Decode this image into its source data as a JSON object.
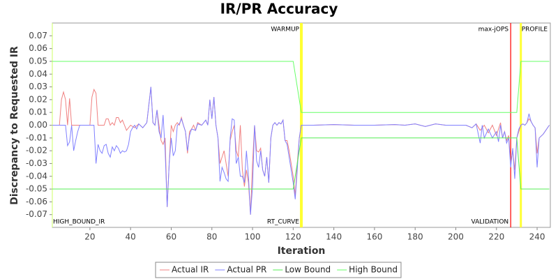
{
  "chart_data": {
    "type": "line",
    "title": "IR/PR Accuracy",
    "x_label": "Iteration",
    "y_label": "Discrepancy to Requested IR",
    "xlim": [
      1.5,
      246.5
    ],
    "xticks": [
      20,
      40,
      60,
      80,
      100,
      120,
      140,
      160,
      180,
      200,
      220,
      240
    ],
    "ylim": [
      -0.08,
      0.08
    ],
    "yticks": [
      -0.07,
      -0.06,
      -0.05,
      -0.04,
      -0.03,
      -0.02,
      -0.01,
      {
        "value": 0,
        "label": "0.00"
      },
      0.01,
      0.02,
      0.03,
      0.04,
      0.05,
      0.06,
      0.07
    ],
    "grid": false,
    "legend": "bottom",
    "series": [
      {
        "name": "Actual IR",
        "color": "#f08080",
        "x": [
          1,
          5,
          6,
          7,
          8,
          9,
          10,
          11,
          20,
          21,
          22,
          23,
          24,
          27,
          28,
          29,
          30,
          31,
          32,
          33,
          34,
          35,
          36,
          37,
          38,
          39,
          40,
          42,
          44,
          46,
          48,
          50,
          51,
          52,
          53,
          54,
          55,
          56,
          57,
          58,
          59,
          60,
          61,
          62,
          63,
          64,
          65,
          66,
          67,
          68,
          69,
          70,
          71,
          72,
          73,
          75,
          77,
          78,
          79,
          80,
          81,
          82,
          83,
          84,
          85,
          86,
          87,
          88,
          89,
          90,
          91,
          92,
          93,
          94,
          95,
          96,
          97,
          98,
          99,
          100,
          101,
          102,
          103,
          104,
          105,
          106,
          107,
          108,
          109,
          110,
          111,
          112,
          113,
          114,
          115,
          116,
          117,
          118,
          119,
          120,
          121,
          122,
          123,
          124,
          130,
          140,
          150,
          160,
          170,
          175,
          180,
          185,
          190,
          195,
          200,
          205,
          208,
          210,
          212,
          214,
          216,
          218,
          220,
          222,
          223,
          224,
          225,
          226,
          227,
          228,
          229,
          230,
          231,
          232,
          233,
          234,
          235,
          236,
          237,
          238,
          239,
          240,
          241,
          243,
          246
        ],
        "values": [
          0,
          0,
          0.02,
          0.026,
          0.02,
          0,
          0.021,
          0,
          0,
          0.022,
          0.028,
          0.025,
          0,
          0,
          0.005,
          0.005,
          0,
          0.002,
          0,
          0.006,
          0.006,
          0.002,
          0.004,
          0,
          -0.004,
          -0.002,
          0,
          -0.002,
          0.001,
          -0.002,
          0.002,
          0.03,
          0.002,
          0,
          0.012,
          0,
          -0.012,
          -0.015,
          -0.01,
          -0.064,
          -0.03,
          0,
          -0.005,
          0,
          0.002,
          0,
          0.006,
          0,
          -0.005,
          -0.022,
          -0.005,
          -0.003,
          0,
          -0.004,
          0.002,
          0,
          0.004,
          0,
          0.02,
          0.005,
          0.022,
          0,
          -0.01,
          -0.03,
          -0.025,
          -0.02,
          -0.03,
          -0.04,
          -0.012,
          -0.005,
          0,
          -0.02,
          -0.025,
          0,
          -0.035,
          -0.048,
          -0.035,
          -0.045,
          -0.07,
          -0.03,
          0,
          -0.02,
          -0.021,
          -0.018,
          -0.035,
          -0.04,
          -0.025,
          -0.045,
          -0.01,
          0,
          0.002,
          0,
          0.002,
          0.001,
          0.004,
          -0.012,
          -0.012,
          -0.02,
          -0.03,
          -0.04,
          -0.055,
          -0.03,
          -0.01,
          0,
          0,
          0.0005,
          0,
          0,
          0.0005,
          0,
          0.001,
          -0.001,
          0.001,
          0,
          0,
          0,
          -0.002,
          0.001,
          -0.004,
          0,
          -0.006,
          0,
          -0.008,
          0.002,
          -0.01,
          -0.005,
          -0.012,
          -0.008,
          -0.03,
          -0.02,
          -0.035,
          -0.01,
          -0.005,
          0,
          0.001,
          0,
          0.002,
          0.005,
          0.003,
          0,
          -0.002,
          -0.022,
          -0.01,
          -0.007,
          0
        ]
      },
      {
        "name": "Actual PR",
        "color": "#8080ff",
        "x": [
          1,
          8,
          9,
          10,
          11,
          12,
          13,
          14,
          15,
          22,
          23,
          24,
          25,
          26,
          27,
          28,
          29,
          30,
          31,
          32,
          33,
          34,
          35,
          36,
          37,
          38,
          39,
          40,
          41,
          42,
          43,
          44,
          46,
          48,
          50,
          51,
          52,
          53,
          54,
          55,
          56,
          57,
          58,
          59,
          60,
          61,
          62,
          63,
          64,
          65,
          66,
          67,
          68,
          69,
          70,
          72,
          73,
          75,
          77,
          78,
          79,
          80,
          81,
          82,
          83,
          84,
          85,
          86,
          87,
          88,
          89,
          90,
          91,
          92,
          93,
          94,
          95,
          96,
          97,
          98,
          99,
          100,
          101,
          102,
          103,
          104,
          105,
          106,
          107,
          108,
          109,
          110,
          111,
          112,
          113,
          114,
          115,
          116,
          117,
          118,
          119,
          120,
          121,
          122,
          123,
          124,
          130,
          140,
          150,
          160,
          170,
          175,
          180,
          185,
          190,
          195,
          200,
          205,
          208,
          210,
          212,
          213,
          214,
          216,
          218,
          220,
          221,
          222,
          223,
          224,
          225,
          226,
          227,
          228,
          229,
          230,
          231,
          232,
          233,
          234,
          235,
          236,
          237,
          238,
          239,
          240,
          241,
          243,
          246
        ],
        "values": [
          0,
          0,
          -0.016,
          -0.013,
          0,
          -0.02,
          -0.012,
          -0.005,
          0,
          0,
          -0.03,
          -0.015,
          -0.02,
          -0.022,
          -0.016,
          -0.015,
          -0.022,
          -0.025,
          -0.017,
          -0.02,
          -0.016,
          -0.018,
          -0.022,
          -0.02,
          -0.021,
          -0.02,
          -0.015,
          -0.005,
          -0.002,
          0,
          -0.003,
          0.001,
          -0.002,
          0.002,
          0.03,
          0.002,
          0,
          0.012,
          -0.005,
          -0.01,
          0.008,
          -0.02,
          -0.064,
          -0.03,
          -0.01,
          -0.024,
          -0.02,
          0,
          0.001,
          0.005,
          0,
          -0.005,
          -0.02,
          -0.008,
          -0.003,
          -0.004,
          0.001,
          0,
          0.004,
          0,
          0.02,
          0.005,
          0.022,
          0,
          -0.01,
          -0.044,
          -0.033,
          -0.037,
          -0.042,
          -0.044,
          -0.01,
          0.005,
          0.004,
          -0.03,
          -0.025,
          -0.04,
          -0.04,
          -0.045,
          -0.02,
          -0.04,
          -0.07,
          -0.048,
          0,
          -0.028,
          -0.033,
          -0.02,
          -0.035,
          -0.04,
          -0.025,
          -0.045,
          -0.01,
          0,
          0.002,
          0,
          0.002,
          0.001,
          0.004,
          -0.012,
          -0.015,
          -0.025,
          -0.035,
          -0.045,
          -0.058,
          -0.035,
          -0.01,
          0,
          0,
          0.0005,
          0,
          0,
          0.0005,
          0,
          0.001,
          -0.001,
          0.001,
          0,
          0,
          0,
          -0.002,
          0.001,
          -0.014,
          0,
          -0.01,
          -0.003,
          -0.01,
          -0.005,
          -0.013,
          0,
          -0.01,
          -0.005,
          -0.014,
          -0.01,
          -0.033,
          -0.018,
          -0.042,
          -0.01,
          -0.003,
          0,
          0.001,
          0,
          0.002,
          0.009,
          0.003,
          0,
          -0.002,
          -0.033,
          -0.01,
          -0.007,
          0
        ]
      },
      {
        "name": "Low Bound",
        "color": "#55ee55",
        "x": [
          1,
          120,
          124,
          230,
          232,
          246
        ],
        "values": [
          -0.05,
          -0.05,
          -0.01,
          -0.01,
          -0.05,
          -0.05
        ]
      },
      {
        "name": "High Bound",
        "color": "#66ff66",
        "x": [
          1,
          120,
          124,
          230,
          232,
          246
        ],
        "values": [
          0.05,
          0.05,
          0.01,
          0.01,
          0.05,
          0.05
        ]
      }
    ],
    "markers": [
      {
        "x": 1.5,
        "label": "HIGH_BOUND_IR",
        "position": "bottom",
        "side": "right",
        "color": "#ccff66",
        "line_width": 1
      },
      {
        "x": 124,
        "label": "WARMUP",
        "position": "top",
        "side": "left",
        "color": "#ffff33",
        "line_width": 4
      },
      {
        "x": 124,
        "label": "RT_CURVE",
        "position": "bottom",
        "side": "left",
        "color": "#ffff33",
        "line_width": 4
      },
      {
        "x": 227,
        "label": "max-jOPS",
        "position": "top",
        "side": "left",
        "color": "#ff0000",
        "line_width": 1
      },
      {
        "x": 227,
        "label": "VALIDATION",
        "position": "bottom",
        "side": "left",
        "color": "#ff0000",
        "line_width": 1
      },
      {
        "x": 232,
        "label": "PROFILE",
        "position": "top",
        "side": "right",
        "color": "#ffff33",
        "line_width": 3
      }
    ]
  }
}
